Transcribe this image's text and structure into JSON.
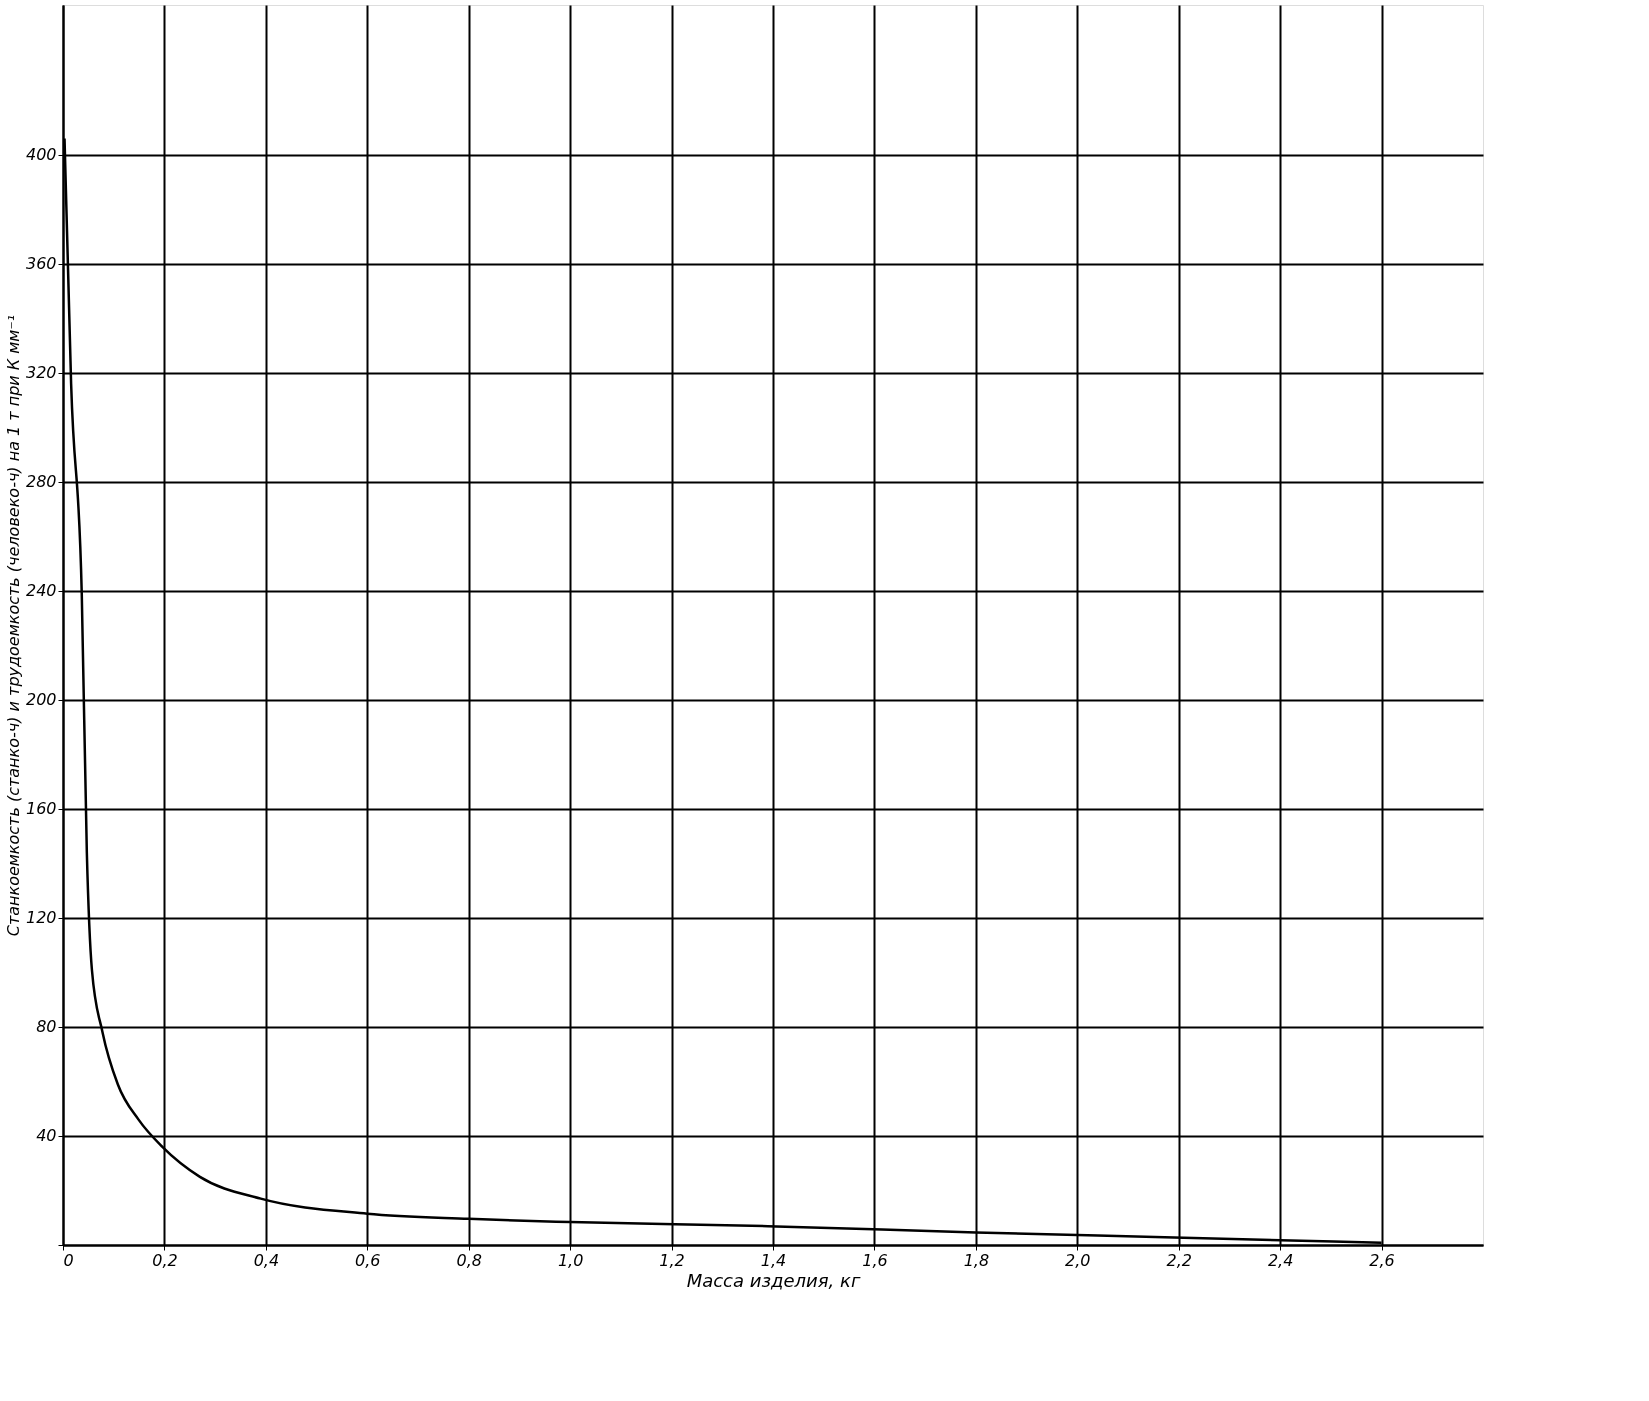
{
  "chart_data": {
    "type": "line",
    "xlabel": "Масса изделия, кг",
    "ylabel": "Станкоемкость (станко-ч) и трудоемкость (человеко-ч) на 1 т при К мм⁻¹",
    "x": [
      0.003,
      0.016,
      0.037,
      0.047,
      0.057,
      0.078,
      0.108,
      0.149,
      0.196,
      0.27,
      0.39,
      0.6,
      0.8,
      1.0,
      1.39,
      1.8,
      2.21,
      2.6
    ],
    "series": [
      {
        "color": "#000000",
        "values": [
          406,
          316,
          239,
          144,
          101,
          78,
          59,
          46,
          36,
          25,
          17,
          11.5,
          9.6,
          8.4,
          6.9,
          4.6,
          2.7,
          0.8
        ]
      }
    ],
    "xlim": [
      0,
      2.8
    ],
    "ylim": [
      0,
      455
    ],
    "xticks": [
      0,
      {
        "value": 0.2,
        "label": "0,2"
      },
      {
        "value": 0.4,
        "label": "0,4"
      },
      {
        "value": 0.6,
        "label": "0,6"
      },
      {
        "value": 0.8,
        "label": "0,8"
      },
      {
        "value": 1.0,
        "label": "1,0"
      },
      {
        "value": 1.2,
        "label": "1,2"
      },
      {
        "value": 1.4,
        "label": "1,4"
      },
      {
        "value": 1.6,
        "label": "1,6"
      },
      {
        "value": 1.8,
        "label": "1,8"
      },
      {
        "value": 2.0,
        "label": "2,0"
      },
      {
        "value": 2.2,
        "label": "2,2"
      },
      {
        "value": 2.4,
        "label": "2,4"
      },
      {
        "value": 2.6,
        "label": "2,6"
      }
    ],
    "yticks": [
      {
        "value": 0,
        "label": null
      },
      40,
      80,
      120,
      160,
      200,
      240,
      280,
      320,
      360,
      400
    ],
    "grid": true,
    "marker": "none",
    "line_style": "solid"
  }
}
